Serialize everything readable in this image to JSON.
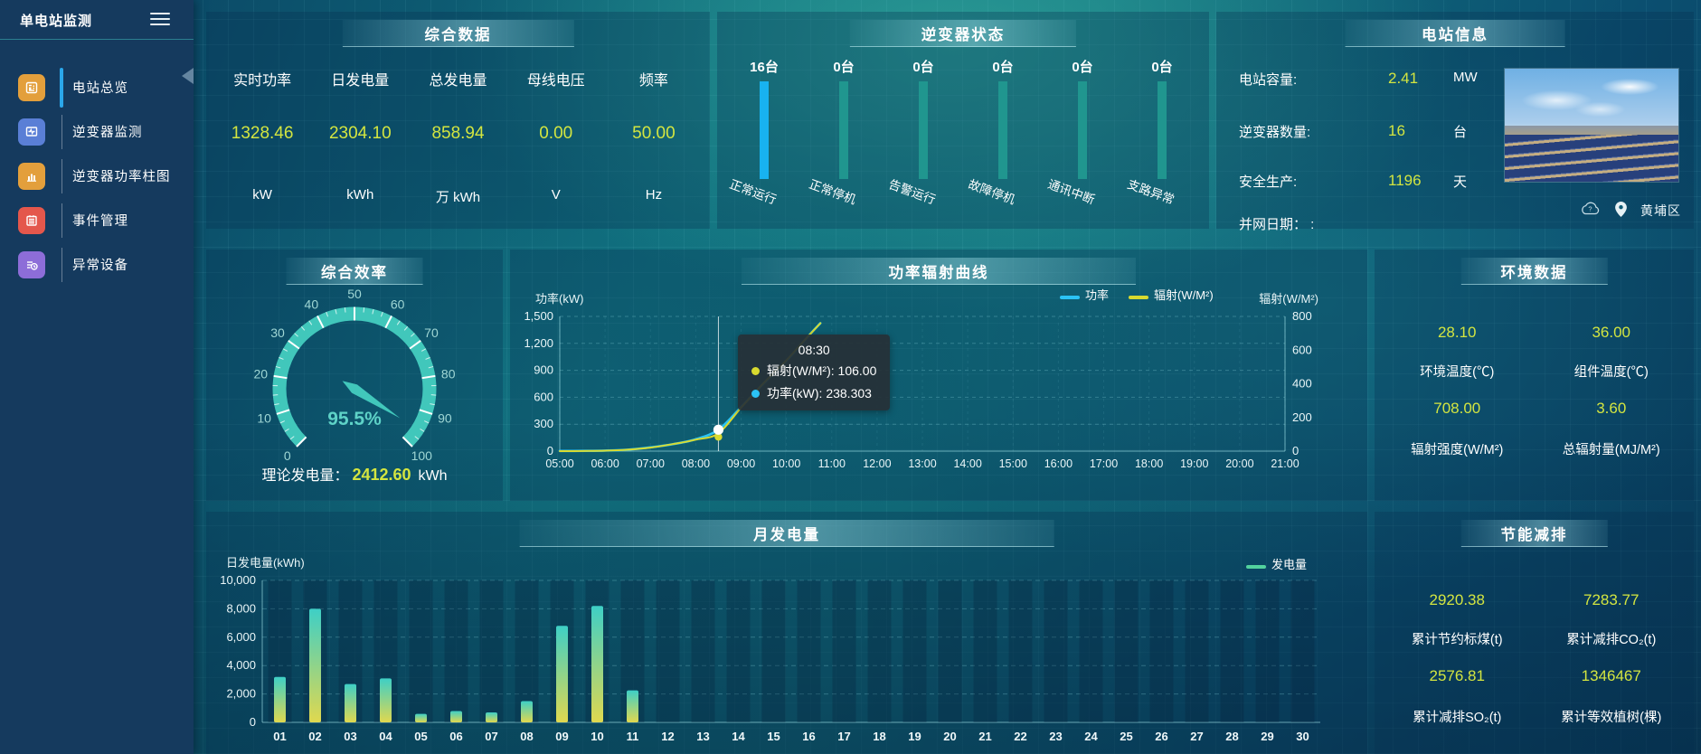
{
  "app": {
    "title": "单电站监测"
  },
  "colors": {
    "accent_yellow": "#d3e540",
    "power_line": "#2bc3f5",
    "radiation_line": "#d8da2f",
    "bar_active": "#18b2f0",
    "bar_normal": "#20968f",
    "gauge": "#41c7bb",
    "monthly_legend": "#52d19e"
  },
  "sidebar": {
    "items": [
      {
        "label": "电站总览",
        "active": true
      },
      {
        "label": "逆变器监测",
        "active": false
      },
      {
        "label": "逆变器功率柱图",
        "active": false
      },
      {
        "label": "事件管理",
        "active": false
      },
      {
        "label": "异常设备",
        "active": false
      }
    ]
  },
  "summary": {
    "title": "综合数据",
    "metrics": [
      {
        "label": "实时功率",
        "value": "1328.46",
        "unit": "kW"
      },
      {
        "label": "日发电量",
        "value": "2304.10",
        "unit": "kWh"
      },
      {
        "label": "总发电量",
        "value": "858.94",
        "unit": "万 kWh"
      },
      {
        "label": "母线电压",
        "value": "0.00",
        "unit": "V"
      },
      {
        "label": "频率",
        "value": "50.00",
        "unit": "Hz"
      }
    ]
  },
  "inverter_status": {
    "title": "逆变器状态",
    "bars": [
      {
        "count": "16台",
        "label": "正常运行",
        "highlight": true
      },
      {
        "count": "0台",
        "label": "正常停机",
        "highlight": false
      },
      {
        "count": "0台",
        "label": "告警运行",
        "highlight": false
      },
      {
        "count": "0台",
        "label": "故障停机",
        "highlight": false
      },
      {
        "count": "0台",
        "label": "通讯中断",
        "highlight": false
      },
      {
        "count": "0台",
        "label": "支路异常",
        "highlight": false
      }
    ]
  },
  "station_info": {
    "title": "电站信息",
    "rows": [
      {
        "label": "电站容量:",
        "value": "2.41",
        "unit": "MW"
      },
      {
        "label": "逆变器数量:",
        "value": "16",
        "unit": "台"
      },
      {
        "label": "安全生产:",
        "value": "1196",
        "unit": "天"
      },
      {
        "label": "并网日期：  :",
        "value": "",
        "unit": ""
      }
    ],
    "location": "黄埔区"
  },
  "efficiency": {
    "title": "综合效率",
    "value_text": "95.5%",
    "theory_label": "理论发电量：",
    "theory_value": "2412.60",
    "theory_unit": "kWh"
  },
  "environment": {
    "title": "环境数据",
    "metrics": [
      {
        "value": "28.10",
        "label": "环境温度(℃)"
      },
      {
        "value": "36.00",
        "label": "组件温度(℃)"
      },
      {
        "value": "708.00",
        "label": "辐射强度(W/M²)"
      },
      {
        "value": "3.60",
        "label": "总辐射量(MJ/M²)"
      }
    ]
  },
  "saving": {
    "title": "节能减排",
    "metrics": [
      {
        "value": "2920.38",
        "label": "累计节约标煤(t)"
      },
      {
        "value": "7283.77",
        "label": "累计减排CO₂(t)"
      },
      {
        "value": "2576.81",
        "label": "累计减排SO₂(t)"
      },
      {
        "value": "1346467",
        "label": "累计等效植树(棵)"
      }
    ]
  },
  "chart_data": [
    {
      "id": "power_curve",
      "type": "line",
      "title": "功率辐射曲线",
      "ylabel_left": "功率(kW)",
      "ylabel_right": "辐射(W/M²)",
      "left_ticks": [
        "0",
        "300",
        "600",
        "900",
        "1,200",
        "1,500"
      ],
      "right_ticks": [
        "0",
        "200",
        "400",
        "600",
        "800"
      ],
      "left_max": 1500,
      "right_max": 800,
      "x_labels": [
        "05:00",
        "06:00",
        "07:00",
        "08:00",
        "09:00",
        "10:00",
        "11:00",
        "12:00",
        "13:00",
        "14:00",
        "15:00",
        "16:00",
        "17:00",
        "18:00",
        "19:00",
        "20:00",
        "21:00"
      ],
      "legend": [
        {
          "name": "功率",
          "color": "#2bc3f5"
        },
        {
          "name": "辐射(W/M²)",
          "color": "#d8da2f"
        }
      ],
      "series": [
        {
          "name": "功率",
          "axis": "left",
          "color": "#2bc3f5",
          "points": [
            [
              5,
              2
            ],
            [
              5.25,
              2
            ],
            [
              5.5,
              3
            ],
            [
              6,
              6
            ],
            [
              6.5,
              16
            ],
            [
              7,
              42
            ],
            [
              7.5,
              78
            ],
            [
              8,
              132
            ],
            [
              8.5,
              238.3
            ],
            [
              9,
              490
            ],
            [
              9.5,
              755
            ],
            [
              10,
              1005
            ],
            [
              10.5,
              1290
            ],
            [
              10.75,
              1425
            ]
          ]
        },
        {
          "name": "辐射(W/M²)",
          "axis": "right",
          "color": "#d8da2f",
          "points": [
            [
              5,
              0
            ],
            [
              5.25,
              0
            ],
            [
              5.5,
              1
            ],
            [
              6,
              3
            ],
            [
              6.5,
              9
            ],
            [
              7,
              21
            ],
            [
              7.5,
              42
            ],
            [
              8,
              68
            ],
            [
              8.5,
              106
            ],
            [
              9,
              258
            ],
            [
              9.5,
              405
            ],
            [
              10,
              540
            ],
            [
              10.5,
              688
            ],
            [
              10.75,
              760
            ]
          ]
        }
      ],
      "tooltip": {
        "time": "08:30",
        "hour": 8.5,
        "rows": [
          {
            "color": "#d8da2f",
            "text": "辐射(W/M²): 106.00"
          },
          {
            "color": "#2bc3f5",
            "text": "功率(kW): 238.303"
          }
        ]
      }
    },
    {
      "id": "monthly",
      "type": "bar",
      "title": "月发电量",
      "ylabel": "日发电量(kWh)",
      "legend": [
        {
          "name": "发电量",
          "color": "#52d19e"
        }
      ],
      "y_ticks": [
        "0",
        "2,000",
        "4,000",
        "6,000",
        "8,000",
        "10,000"
      ],
      "ymax": 10000,
      "categories": [
        "01",
        "02",
        "03",
        "04",
        "05",
        "06",
        "07",
        "08",
        "09",
        "10",
        "11",
        "12",
        "13",
        "14",
        "15",
        "16",
        "17",
        "18",
        "19",
        "20",
        "21",
        "22",
        "23",
        "24",
        "25",
        "26",
        "27",
        "28",
        "29",
        "30"
      ],
      "values": [
        3200,
        8000,
        2700,
        3100,
        600,
        800,
        700,
        1500,
        6800,
        8200,
        2250,
        0,
        0,
        0,
        0,
        0,
        0,
        0,
        0,
        0,
        0,
        0,
        0,
        0,
        0,
        0,
        0,
        0,
        0,
        0
      ]
    },
    {
      "id": "gauge",
      "type": "gauge",
      "min": 0,
      "max": 100,
      "tick_step": 10,
      "value": 95.5,
      "label": "95.5%"
    }
  ]
}
